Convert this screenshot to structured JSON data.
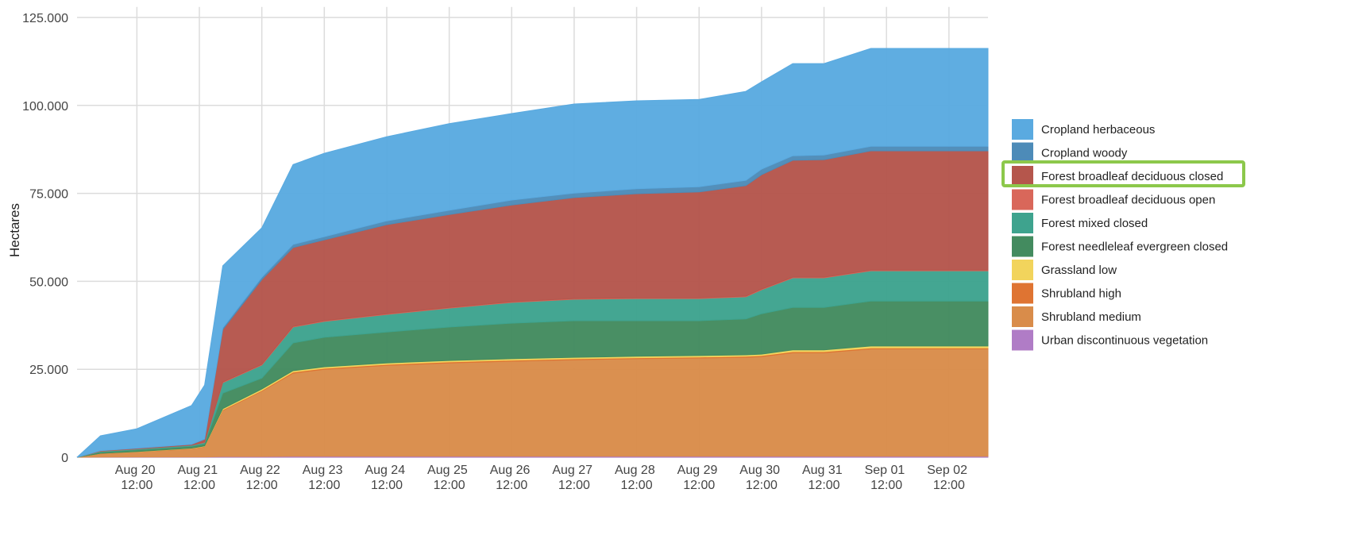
{
  "chart_data": {
    "type": "stacked_area",
    "y_label": "Hectares",
    "x": [
      "Aug 19 13:00",
      "Aug 19 22:00",
      "Aug 20 12:00",
      "Aug 21 09:00",
      "Aug 21 14:00",
      "Aug 21 21:00",
      "Aug 22 12:00",
      "Aug 23 00:00",
      "Aug 23 12:00",
      "Aug 24 12:00",
      "Aug 25 12:00",
      "Aug 26 12:00",
      "Aug 27 12:00",
      "Aug 28 12:00",
      "Aug 29 12:00",
      "Aug 30 06:00",
      "Aug 30 12:00",
      "Aug 31 00:00",
      "Aug 31 12:00",
      "Sep 01 06:00",
      "Sep 02 12:00",
      "Sep 03 03:00"
    ],
    "xlim": [
      "Aug 19 13:00",
      "Sep 03 03:00"
    ],
    "xticks": [
      "Aug 20 12:00",
      "Aug 21 12:00",
      "Aug 22 12:00",
      "Aug 23 12:00",
      "Aug 24 12:00",
      "Aug 25 12:00",
      "Aug 26 12:00",
      "Aug 27 12:00",
      "Aug 28 12:00",
      "Aug 29 12:00",
      "Aug 30 12:00",
      "Aug 31 12:00",
      "Sep 01 12:00",
      "Sep 02 12:00"
    ],
    "ylim": [
      0,
      128000
    ],
    "yticks": [
      0,
      {
        "value": 25000,
        "label": "25.000"
      },
      {
        "value": 50000,
        "label": "50.000"
      },
      {
        "value": 75000,
        "label": "75.000"
      },
      {
        "value": 100000,
        "label": "100.000"
      },
      {
        "value": 125000,
        "label": "125.000"
      }
    ],
    "grid": true,
    "legend": "right",
    "series": [
      {
        "name": "Urban discontinuous vegetation",
        "color": "#b07cc6",
        "values": [
          0,
          50,
          100,
          100,
          100,
          200,
          200,
          300,
          300,
          300,
          300,
          300,
          300,
          300,
          300,
          300,
          300,
          300,
          300,
          300,
          300,
          300
        ]
      },
      {
        "name": "Shrubland medium",
        "color": "#d98c4a",
        "values": [
          0,
          950,
          1400,
          2300,
          2900,
          13100,
          18600,
          23600,
          24700,
          25800,
          26500,
          27000,
          27400,
          27700,
          27900,
          28100,
          28300,
          29400,
          29400,
          30500,
          30500,
          30500
        ]
      },
      {
        "name": "Shrubland high",
        "color": "#df7432",
        "values": [
          0,
          50,
          50,
          100,
          100,
          200,
          200,
          300,
          300,
          300,
          300,
          300,
          300,
          300,
          300,
          300,
          300,
          300,
          300,
          300,
          300,
          300
        ]
      },
      {
        "name": "Grassland low",
        "color": "#f2d45c",
        "values": [
          0,
          50,
          50,
          100,
          100,
          300,
          400,
          400,
          400,
          400,
          400,
          400,
          400,
          400,
          400,
          400,
          400,
          500,
          500,
          500,
          500,
          500
        ]
      },
      {
        "name": "Forest needleleaf evergreen closed",
        "color": "#438b5f",
        "values": [
          0,
          400,
          500,
          500,
          600,
          4400,
          3100,
          7900,
          8400,
          8800,
          9500,
          10100,
          10400,
          10100,
          9900,
          10200,
          11500,
          12100,
          12100,
          12800,
          12800,
          12800
        ]
      },
      {
        "name": "Forest mixed closed",
        "color": "#3ea38e",
        "values": [
          0,
          200,
          250,
          300,
          400,
          3000,
          3700,
          4500,
          4500,
          5000,
          5400,
          5900,
          6100,
          6300,
          6300,
          6300,
          6800,
          8400,
          8400,
          8600,
          8600,
          8600
        ]
      },
      {
        "name": "Forest broadleaf deciduous open",
        "color": "#d9675a",
        "values": [
          0,
          50,
          50,
          50,
          100,
          200,
          200,
          200,
          200,
          200,
          200,
          200,
          200,
          200,
          200,
          200,
          200,
          200,
          200,
          200,
          200,
          200
        ]
      },
      {
        "name": "Forest broadleaf deciduous closed",
        "color": "#b5564c",
        "values": [
          0,
          100,
          150,
          200,
          800,
          14900,
          24100,
          22400,
          23000,
          25300,
          26400,
          27500,
          28700,
          29600,
          30100,
          31400,
          32500,
          33200,
          33400,
          33900,
          33900,
          33900
        ]
      },
      {
        "name": "Cropland woody",
        "color": "#4d8bb8",
        "values": [
          0,
          50,
          50,
          50,
          100,
          500,
          700,
          900,
          900,
          1100,
          1200,
          1400,
          1300,
          1400,
          1500,
          1500,
          1600,
          1300,
          1300,
          1300,
          1300,
          1300
        ]
      },
      {
        "name": "Cropland herbaceous",
        "color": "#5aaae0",
        "values": [
          0,
          4200,
          5500,
          11000,
          15300,
          17600,
          14000,
          22700,
          23700,
          23900,
          24600,
          24600,
          25300,
          25000,
          24800,
          25300,
          24800,
          26200,
          26000,
          27800,
          27800,
          27800
        ]
      }
    ]
  }
}
